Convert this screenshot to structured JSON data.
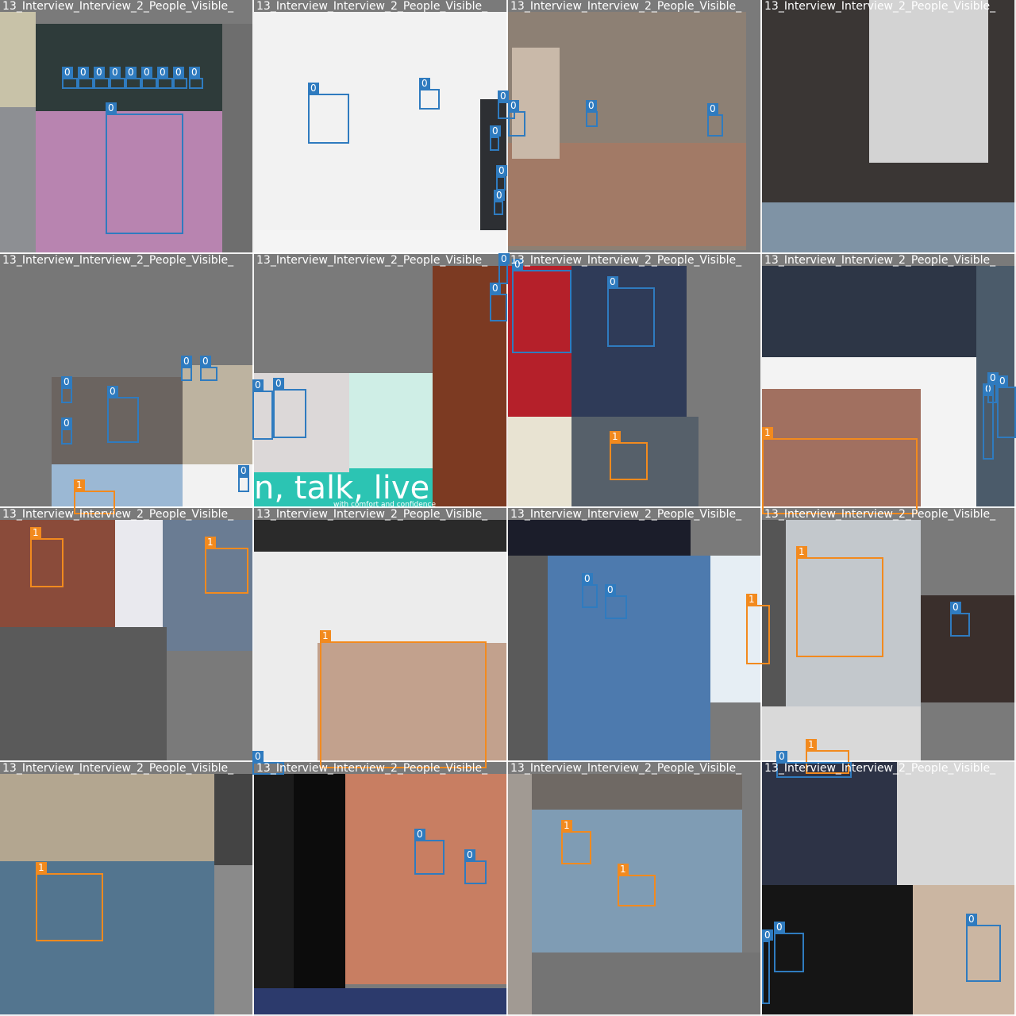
{
  "mosaic": {
    "tile_title": "13_Interview_Interview_2_People_Visible_",
    "classes": [
      {
        "id": "0",
        "color": "#2f7bbf"
      },
      {
        "id": "1",
        "color": "#f28a1e"
      }
    ],
    "tiles": [
      {
        "boxes": [
          {
            "cls": "0"
          },
          {
            "cls": "0"
          },
          {
            "cls": "0"
          },
          {
            "cls": "0"
          },
          {
            "cls": "0"
          },
          {
            "cls": "0"
          },
          {
            "cls": "0"
          },
          {
            "cls": "0"
          },
          {
            "cls": "0"
          },
          {
            "cls": "0"
          }
        ]
      },
      {
        "boxes": [
          {
            "cls": "0"
          },
          {
            "cls": "0"
          },
          {
            "cls": "0"
          },
          {
            "cls": "0"
          },
          {
            "cls": "0"
          },
          {
            "cls": "0"
          }
        ]
      },
      {
        "boxes": [
          {
            "cls": "0"
          },
          {
            "cls": "0"
          },
          {
            "cls": "0"
          }
        ]
      },
      {
        "boxes": []
      },
      {
        "boxes": [
          {
            "cls": "0"
          },
          {
            "cls": "0"
          },
          {
            "cls": "0"
          },
          {
            "cls": "0"
          },
          {
            "cls": "0"
          },
          {
            "cls": "0"
          },
          {
            "cls": "1"
          }
        ]
      },
      {
        "boxes": [
          {
            "cls": "0"
          },
          {
            "cls": "0"
          },
          {
            "cls": "0"
          },
          {
            "cls": "0"
          }
        ]
      },
      {
        "boxes": [
          {
            "cls": "0"
          },
          {
            "cls": "0"
          },
          {
            "cls": "1"
          }
        ]
      },
      {
        "boxes": [
          {
            "cls": "0"
          },
          {
            "cls": "0"
          },
          {
            "cls": "0"
          },
          {
            "cls": "1"
          }
        ]
      },
      {
        "boxes": [
          {
            "cls": "1"
          },
          {
            "cls": "1"
          }
        ]
      },
      {
        "boxes": [
          {
            "cls": "1"
          },
          {
            "cls": "0"
          }
        ]
      },
      {
        "boxes": [
          {
            "cls": "0"
          },
          {
            "cls": "0"
          },
          {
            "cls": "1"
          }
        ]
      },
      {
        "boxes": [
          {
            "cls": "1"
          },
          {
            "cls": "0"
          },
          {
            "cls": "1"
          },
          {
            "cls": "0"
          }
        ]
      },
      {
        "boxes": [
          {
            "cls": "1"
          }
        ]
      },
      {
        "boxes": [
          {
            "cls": "0"
          },
          {
            "cls": "0"
          }
        ]
      },
      {
        "boxes": [
          {
            "cls": "1"
          },
          {
            "cls": "1"
          }
        ]
      },
      {
        "boxes": [
          {
            "cls": "0"
          },
          {
            "cls": "0"
          },
          {
            "cls": "0"
          }
        ]
      }
    ],
    "captions": {
      "tile6": "n, talk, live",
      "tile6_small": "with comfort and confidence"
    }
  }
}
